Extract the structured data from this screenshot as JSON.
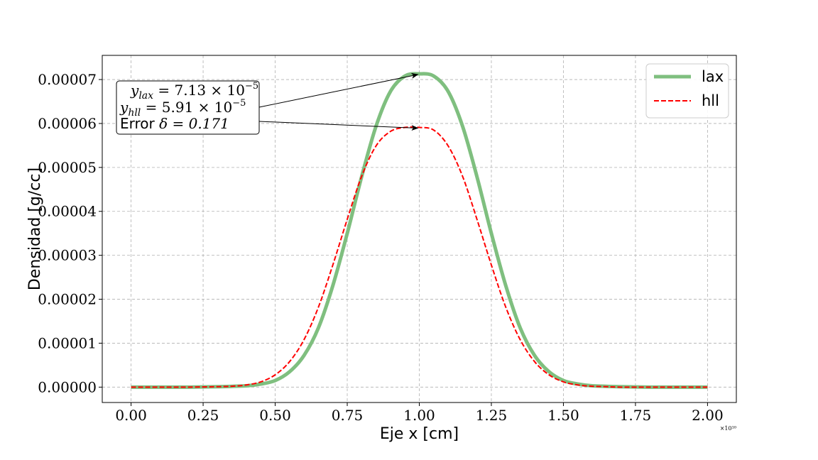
{
  "chart_data": {
    "type": "line",
    "xlabel": "Eje x [cm]",
    "ylabel": "Densidad [g/cc]",
    "x_offset_label": "×10¹⁰",
    "xlim": [
      -0.1,
      2.1
    ],
    "ylim": [
      -3.5e-06,
      7.55e-05
    ],
    "xticks": [
      0.0,
      0.25,
      0.5,
      0.75,
      1.0,
      1.25,
      1.5,
      1.75,
      2.0
    ],
    "xtick_labels": [
      "0.00",
      "0.25",
      "0.50",
      "0.75",
      "1.00",
      "1.25",
      "1.50",
      "1.75",
      "2.00"
    ],
    "yticks": [
      0.0,
      1e-05,
      2e-05,
      3e-05,
      4e-05,
      5e-05,
      6e-05,
      7e-05
    ],
    "ytick_labels": [
      "0.00000",
      "0.00001",
      "0.00002",
      "0.00003",
      "0.00004",
      "0.00005",
      "0.00006",
      "0.00007"
    ],
    "grid": true,
    "legend_position": "top-right",
    "series": [
      {
        "name": "lax",
        "color": "#7fbf7f",
        "style": "solid-thick",
        "x": [
          0.0,
          0.1,
          0.2,
          0.3,
          0.4,
          0.45,
          0.5,
          0.55,
          0.6,
          0.65,
          0.7,
          0.75,
          0.8,
          0.85,
          0.9,
          0.95,
          1.0,
          1.05,
          1.1,
          1.15,
          1.2,
          1.25,
          1.3,
          1.35,
          1.4,
          1.45,
          1.5,
          1.55,
          1.6,
          1.7,
          1.8,
          1.9,
          2.0
        ],
        "values": [
          0.0,
          0.0,
          0.0,
          1e-07,
          3e-07,
          7e-07,
          1.5e-06,
          3.5e-06,
          7.2e-06,
          1.35e-05,
          2.31e-05,
          3.5e-05,
          4.79e-05,
          5.94e-05,
          6.73e-05,
          7.08e-05,
          7.13e-05,
          7.08e-05,
          6.73e-05,
          5.94e-05,
          4.79e-05,
          3.5e-05,
          2.31e-05,
          1.35e-05,
          7.2e-06,
          3.5e-06,
          1.5e-06,
          7e-07,
          3e-07,
          1e-07,
          0.0,
          0.0,
          0.0
        ]
      },
      {
        "name": "hll",
        "color": "#ff0000",
        "style": "dashed",
        "x": [
          0.0,
          0.1,
          0.2,
          0.3,
          0.35,
          0.4,
          0.45,
          0.5,
          0.55,
          0.6,
          0.65,
          0.7,
          0.75,
          0.8,
          0.85,
          0.9,
          0.95,
          1.0,
          1.05,
          1.1,
          1.15,
          1.2,
          1.25,
          1.3,
          1.35,
          1.4,
          1.45,
          1.5,
          1.55,
          1.6,
          1.65,
          1.7,
          1.8,
          1.9,
          2.0
        ],
        "values": [
          0.0,
          0.0,
          0.0,
          1e-07,
          2e-07,
          5e-07,
          1.2e-06,
          2.8e-06,
          5.8e-06,
          1.08e-05,
          1.82e-05,
          2.78e-05,
          3.82e-05,
          4.8e-05,
          5.49e-05,
          5.82e-05,
          5.91e-05,
          5.91e-05,
          5.85e-05,
          5.49e-05,
          4.8e-05,
          3.82e-05,
          2.78e-05,
          1.82e-05,
          1.08e-05,
          5.8e-06,
          2.8e-06,
          1.2e-06,
          5e-07,
          2e-07,
          1e-07,
          0.0,
          0.0,
          0.0,
          0.0
        ]
      }
    ],
    "annotation": {
      "lines": [
        "y_lax = 7.13 × 10⁻⁵",
        "y_hll = 5.91 × 10⁻⁵",
        "Error δ = 0.171"
      ],
      "line1_main": "y",
      "line1_sub": "lax",
      "line1_rest": " = 7.13 × 10",
      "line1_exp": "−5",
      "line2_main": "y",
      "line2_sub": "hll",
      "line2_rest": " = 5.91 × 10",
      "line2_exp": "−5",
      "line3_word": "Error ",
      "line3_rest": "δ = 0.171",
      "arrow_targets": [
        {
          "series": "lax",
          "x": 1.0,
          "y": 7.13e-05
        },
        {
          "series": "hll",
          "x": 1.0,
          "y": 5.91e-05
        }
      ]
    }
  }
}
